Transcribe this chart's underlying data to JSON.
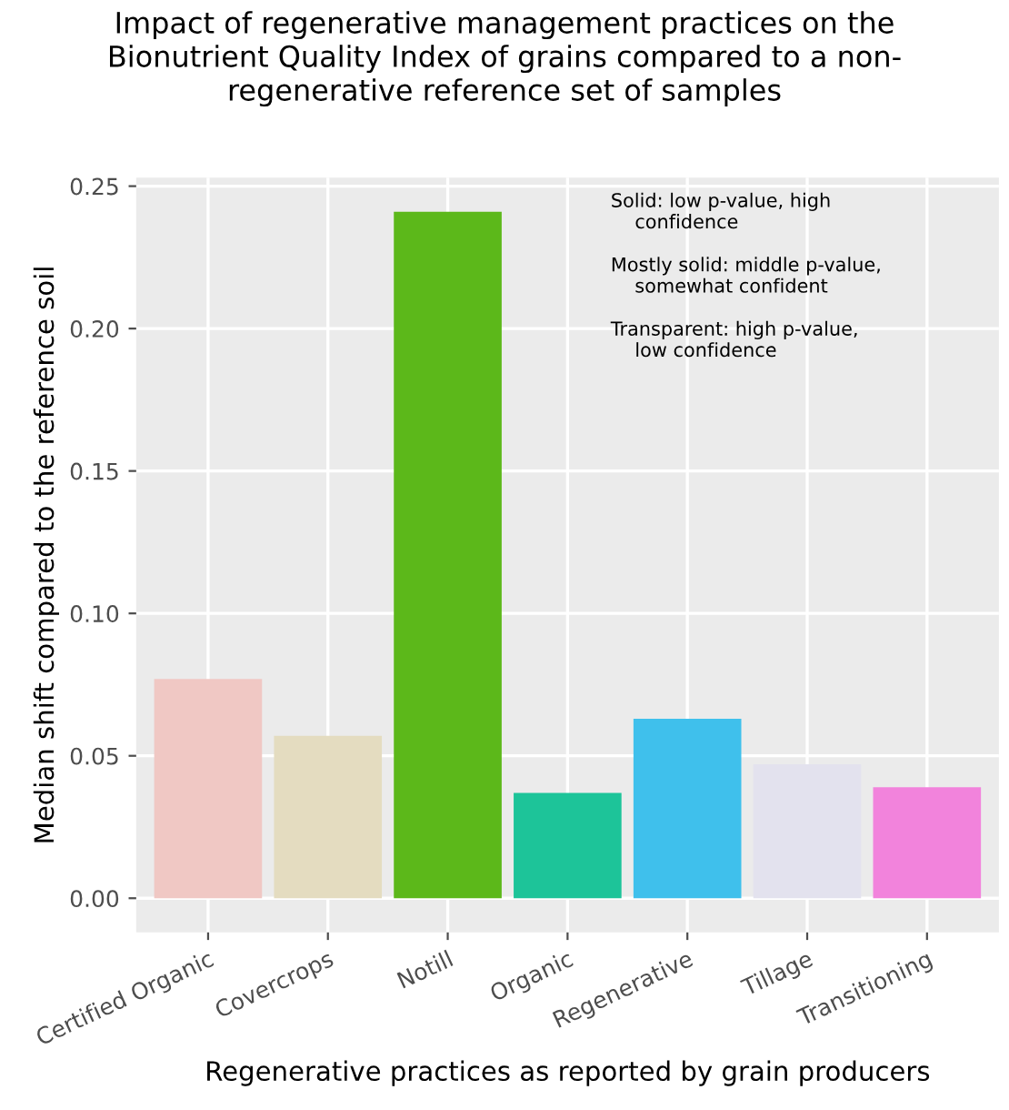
{
  "chart_data": {
    "type": "bar",
    "title": "Impact of regenerative management practices on the\nBionutrient Quality Index of grains compared to a non-\nregenerative reference set of samples",
    "xlabel": "Regenerative practices as reported by grain producers",
    "ylabel": "Median shift compared to the reference soil",
    "categories": [
      "Certified Organic",
      "Covercrops",
      "Notill",
      "Organic",
      "Regenerative",
      "Tillage",
      "Transitioning"
    ],
    "values": [
      0.077,
      0.057,
      0.241,
      0.037,
      0.063,
      0.047,
      0.039
    ],
    "colors": [
      "#f0c8c4",
      "#e4dcc0",
      "#5cb81a",
      "#1dc499",
      "#3fc0ec",
      "#e3e2ee",
      "#f283dc"
    ],
    "ylim": [
      -0.012,
      0.253
    ],
    "yticks": [
      {
        "value": 0,
        "label": "0.00"
      },
      {
        "value": 0.05,
        "label": "0.05"
      },
      {
        "value": 0.1,
        "label": "0.10"
      },
      {
        "value": 0.15,
        "label": "0.15"
      },
      {
        "value": 0.2,
        "label": "0.20"
      },
      {
        "value": 0.25,
        "label": "0.25"
      }
    ],
    "grid": true,
    "annotations": [
      "Solid: low p-value, high\n    confidence",
      "Mostly solid: middle p-value,\n    somewhat confident",
      "Transparent: high p-value,\n    low confidence"
    ]
  }
}
